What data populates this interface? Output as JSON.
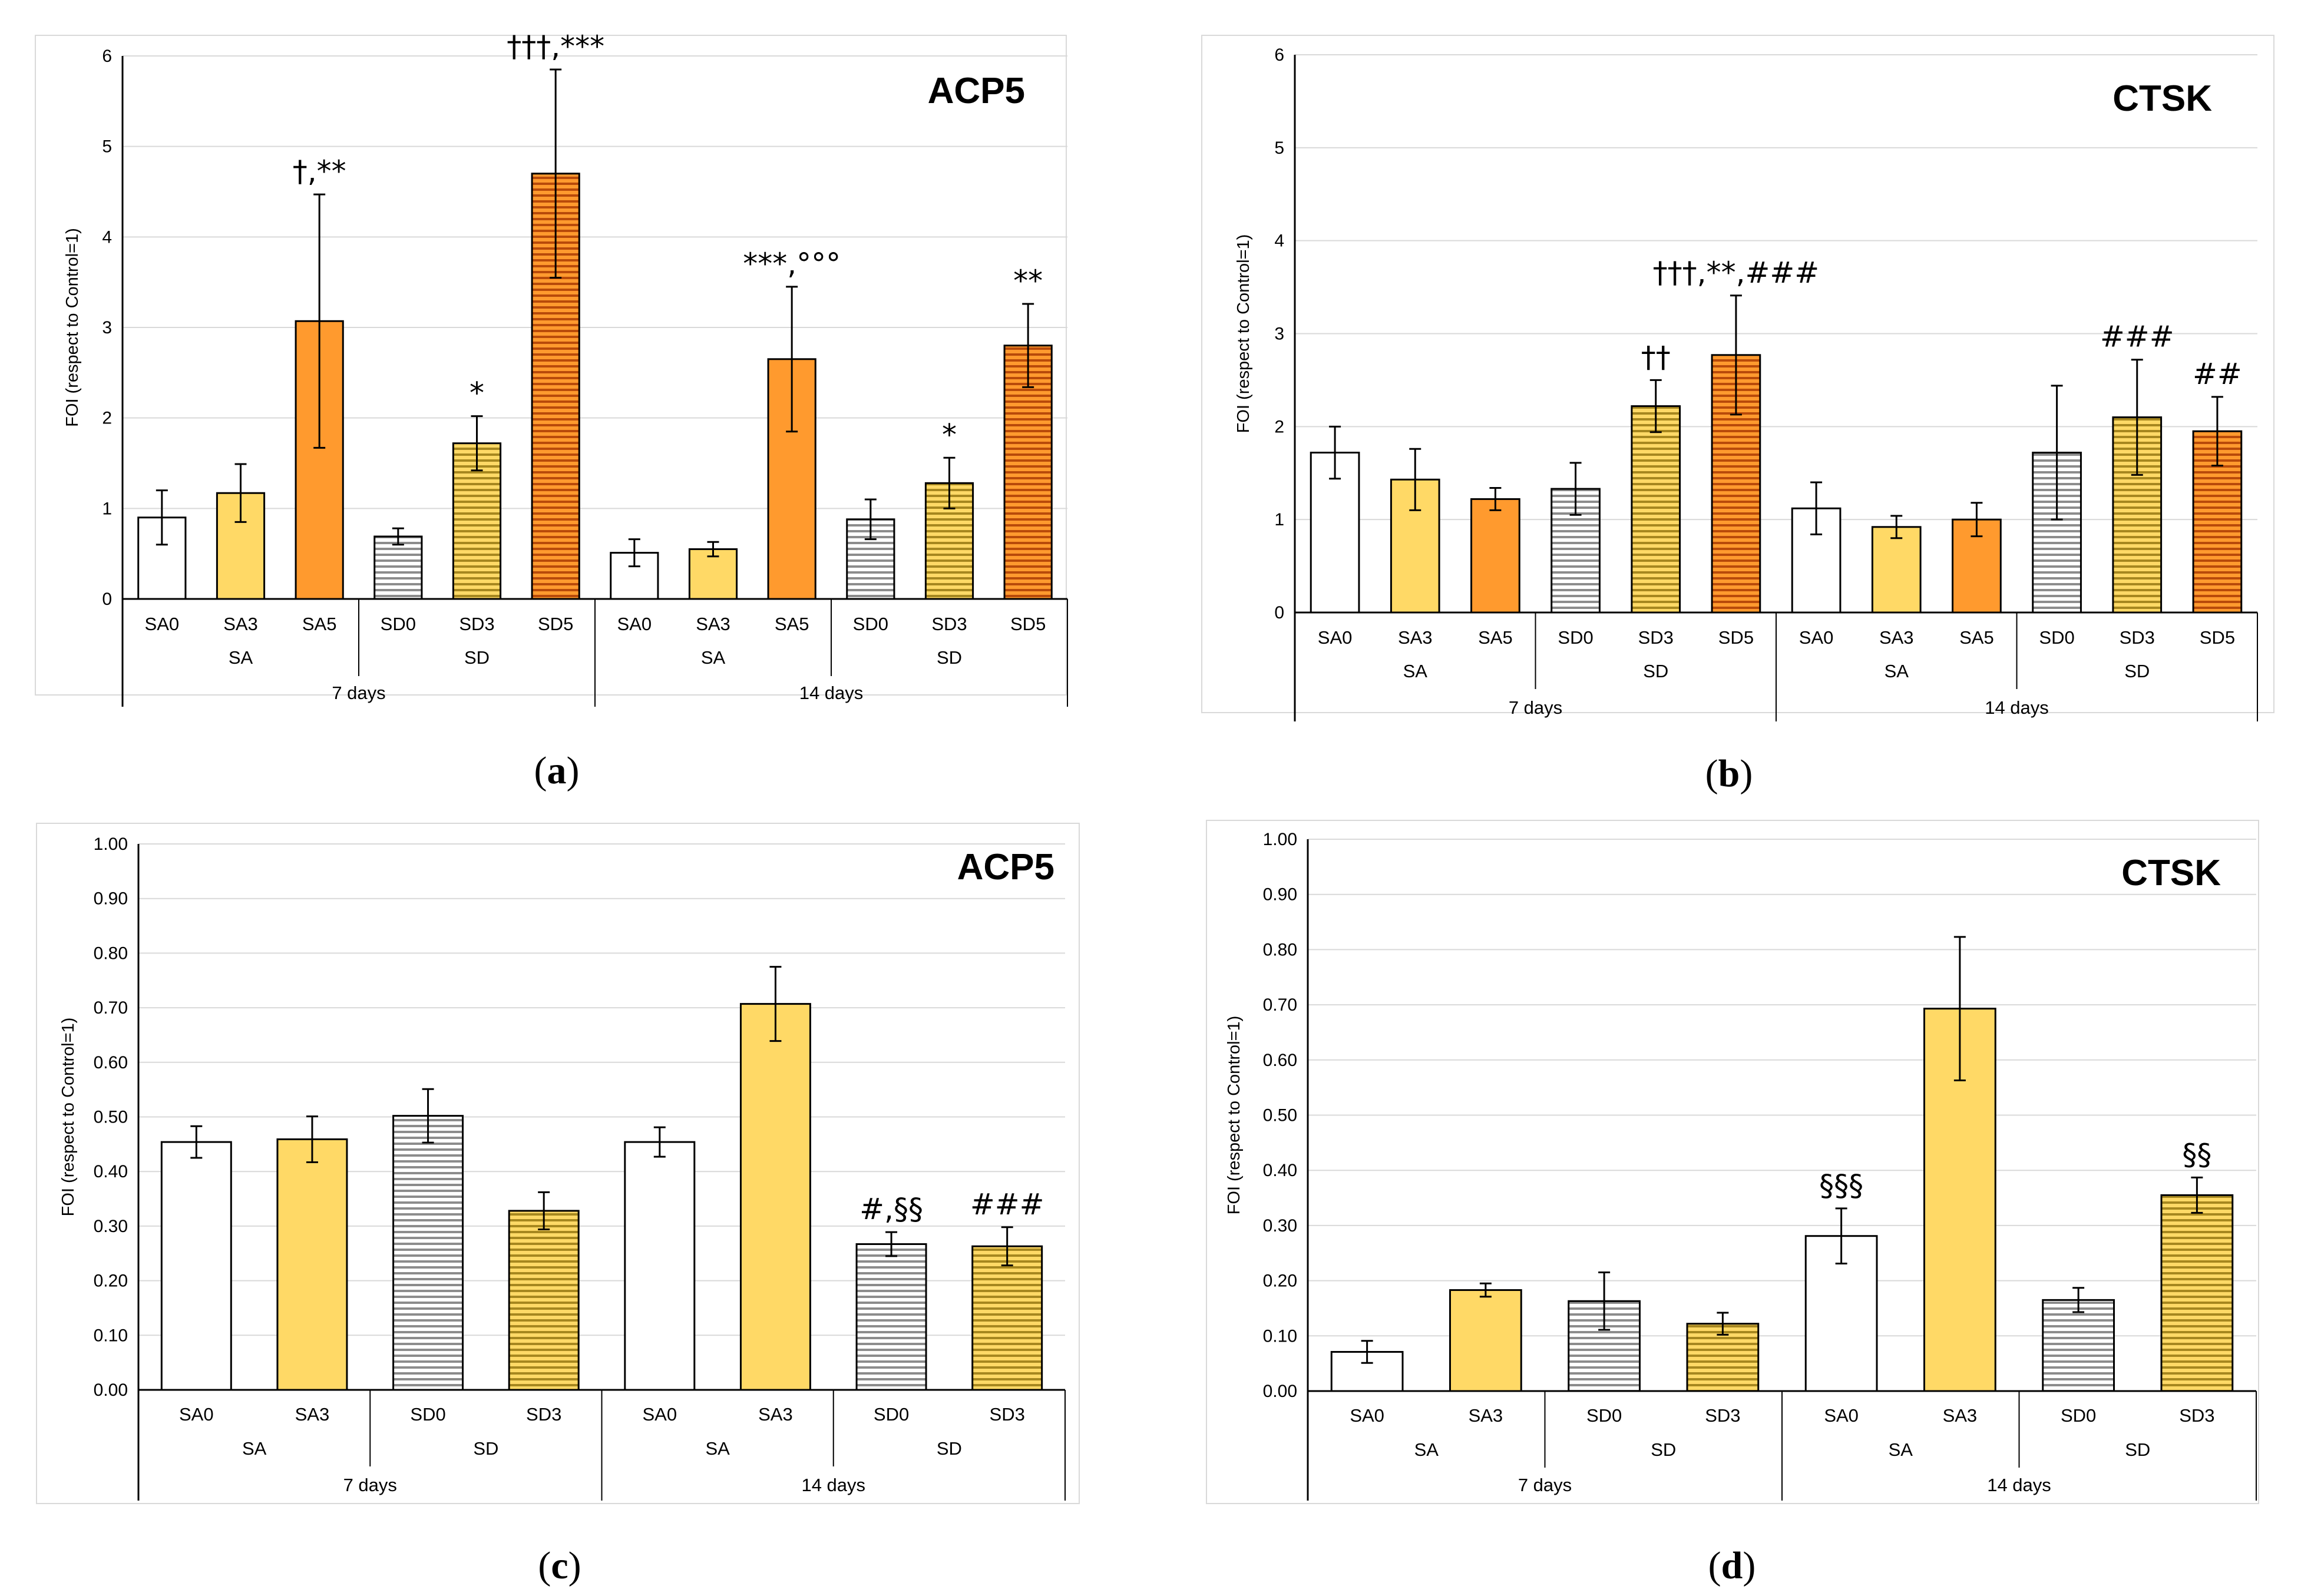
{
  "figure": {
    "colors": {
      "SA0": "#ffffff",
      "SA3": "#ffd966",
      "SA5": "#ff9a2e",
      "SD0": "#ffffff",
      "SD3": "#ffd966",
      "SD5": "#ff9a2e",
      "SD_stripe": "#8c8c8c",
      "SD3_stripe": "#a6871f",
      "SD5_stripe": "#b84a0a",
      "grid": "#d9d9d9"
    }
  },
  "chart_data": [
    {
      "panel": "a",
      "type": "bar",
      "title": "ACP5",
      "ylabel": "FOI (respect to Control=1)",
      "ylim": [
        0,
        6
      ],
      "yticks": [
        0,
        1,
        2,
        3,
        4,
        5,
        6
      ],
      "tick_labels": [
        "0",
        "1",
        "2",
        "3",
        "4",
        "5",
        "6"
      ],
      "categories": [
        "SA0",
        "SA3",
        "SA5",
        "SD0",
        "SD3",
        "SD5",
        "SA0",
        "SA3",
        "SA5",
        "SD0",
        "SD3",
        "SD5"
      ],
      "groups": [
        "SA",
        "SD",
        "SA",
        "SD"
      ],
      "periods": [
        "7 days",
        "14 days"
      ],
      "values": [
        0.9,
        1.17,
        3.07,
        0.69,
        1.72,
        4.7,
        0.51,
        0.55,
        2.65,
        0.88,
        1.28,
        2.8
      ],
      "errors": [
        0.3,
        0.32,
        1.4,
        0.09,
        0.3,
        1.15,
        0.15,
        0.08,
        0.8,
        0.22,
        0.28,
        0.46
      ],
      "annotations": [
        "",
        "",
        "†,**",
        "",
        "*",
        "†††,***",
        "",
        "",
        "***,°°°",
        "",
        "*",
        "**"
      ],
      "caption": "(a)"
    },
    {
      "panel": "b",
      "type": "bar",
      "title": "CTSK",
      "ylabel": "FOI (respect to Control=1)",
      "ylim": [
        0,
        6
      ],
      "yticks": [
        0,
        1,
        2,
        3,
        4,
        5,
        6
      ],
      "tick_labels": [
        "0",
        "1",
        "2",
        "3",
        "4",
        "5",
        "6"
      ],
      "categories": [
        "SA0",
        "SA3",
        "SA5",
        "SD0",
        "SD3",
        "SD5",
        "SA0",
        "SA3",
        "SA5",
        "SD0",
        "SD3",
        "SD5"
      ],
      "groups": [
        "SA",
        "SD",
        "SA",
        "SD"
      ],
      "periods": [
        "7 days",
        "14 days"
      ],
      "values": [
        1.72,
        1.43,
        1.22,
        1.33,
        2.22,
        2.77,
        1.12,
        0.92,
        1.0,
        1.72,
        2.1,
        1.95
      ],
      "errors": [
        0.28,
        0.33,
        0.12,
        0.28,
        0.28,
        0.64,
        0.28,
        0.12,
        0.18,
        0.72,
        0.62,
        0.37
      ],
      "annotations": [
        "",
        "",
        "",
        "",
        "††",
        "†††,**,###",
        "",
        "",
        "",
        "",
        "###",
        "##"
      ],
      "caption": "(b)"
    },
    {
      "panel": "c",
      "type": "bar",
      "title": "ACP5",
      "ylabel": "FOI (respect to Control=1)",
      "ylim": [
        0,
        1
      ],
      "yticks": [
        0,
        0.1,
        0.2,
        0.3,
        0.4,
        0.5,
        0.6,
        0.7,
        0.8,
        0.9,
        1.0
      ],
      "tick_labels": [
        "0.00",
        "0.10",
        "0.20",
        "0.30",
        "0.40",
        "0.50",
        "0.60",
        "0.70",
        "0.80",
        "0.90",
        "1.00"
      ],
      "categories": [
        "SA0",
        "SA3",
        "SD0",
        "SD3",
        "SA0",
        "SA3",
        "SD0",
        "SD3"
      ],
      "groups": [
        "SA",
        "SD",
        "SA",
        "SD"
      ],
      "periods": [
        "7 days",
        "14 days"
      ],
      "values": [
        0.454,
        0.459,
        0.502,
        0.328,
        0.454,
        0.707,
        0.267,
        0.263
      ],
      "errors": [
        0.029,
        0.042,
        0.049,
        0.034,
        0.027,
        0.068,
        0.022,
        0.035
      ],
      "annotations": [
        "",
        "",
        "",
        "",
        "",
        "",
        "#,§§",
        "###"
      ],
      "caption": "(c)"
    },
    {
      "panel": "d",
      "type": "bar",
      "title": "CTSK",
      "ylabel": "FOI (respect to Control=1)",
      "ylim": [
        0,
        1
      ],
      "yticks": [
        0,
        0.1,
        0.2,
        0.3,
        0.4,
        0.5,
        0.6,
        0.7,
        0.8,
        0.9,
        1.0
      ],
      "tick_labels": [
        "0.00",
        "0.10",
        "0.20",
        "0.30",
        "0.40",
        "0.50",
        "0.60",
        "0.70",
        "0.80",
        "0.90",
        "1.00"
      ],
      "categories": [
        "SA0",
        "SA3",
        "SD0",
        "SD3",
        "SA0",
        "SA3",
        "SD0",
        "SD3"
      ],
      "groups": [
        "SA",
        "SD",
        "SA",
        "SD"
      ],
      "periods": [
        "7 days",
        "14 days"
      ],
      "values": [
        0.071,
        0.183,
        0.163,
        0.122,
        0.281,
        0.693,
        0.165,
        0.355
      ],
      "errors": [
        0.02,
        0.012,
        0.052,
        0.02,
        0.05,
        0.13,
        0.022,
        0.032
      ],
      "annotations": [
        "",
        "",
        "",
        "",
        "§§§",
        "",
        "",
        "§§"
      ],
      "caption": "(d)"
    }
  ]
}
